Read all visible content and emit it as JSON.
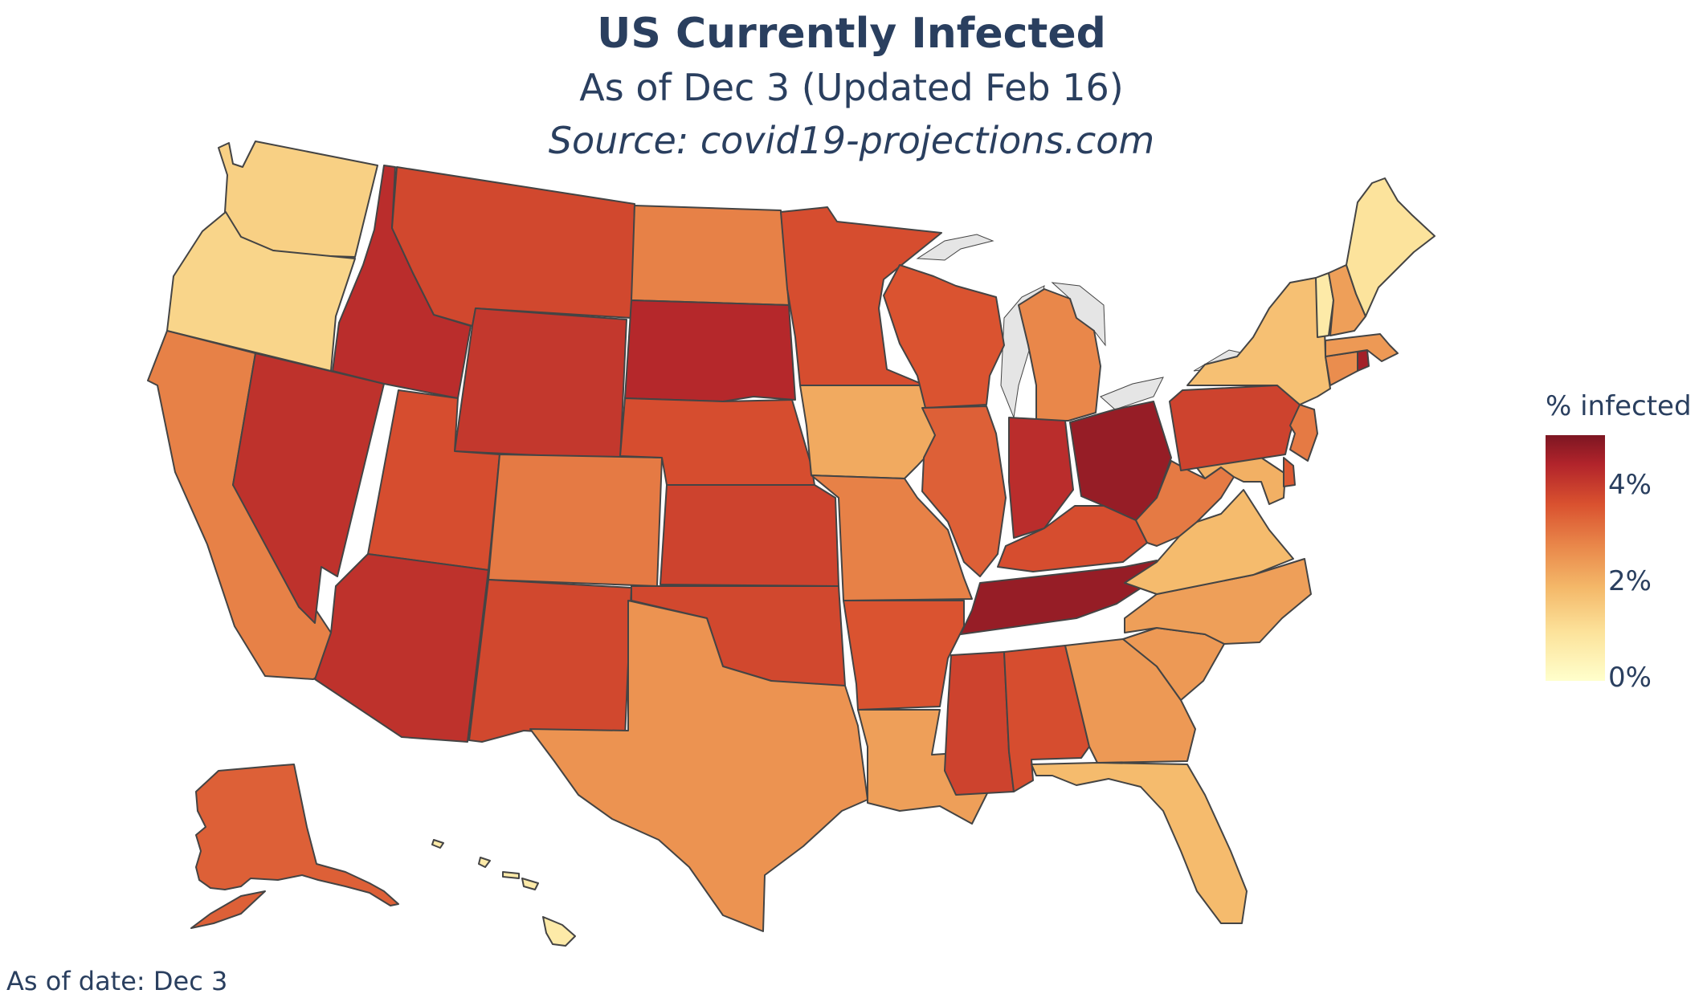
{
  "title": "US Currently Infected",
  "subtitle": "As of Dec 3 (Updated Feb 16)",
  "source": "Source: covid19-projections.com",
  "footer": "As of date: Dec 3",
  "colorbar": {
    "title": "% infected",
    "ticks": [
      "4%",
      "2%",
      "0%"
    ],
    "range": [
      0,
      5
    ]
  },
  "map_style": {
    "lakes_color": "#e5e5e5",
    "border_color": "#444444",
    "scale": [
      "#ffffcc",
      "#fce29a",
      "#f4b869",
      "#e9874a",
      "#d9512f",
      "#b2242b",
      "#7d1622"
    ]
  },
  "states": [
    {
      "name": "Washington",
      "value": 1.2
    },
    {
      "name": "Oregon",
      "value": 1.1
    },
    {
      "name": "California",
      "value": 2.6
    },
    {
      "name": "Nevada",
      "value": 3.9
    },
    {
      "name": "Idaho",
      "value": 4.0
    },
    {
      "name": "Montana",
      "value": 3.5
    },
    {
      "name": "Wyoming",
      "value": 3.8
    },
    {
      "name": "Utah",
      "value": 3.4
    },
    {
      "name": "Arizona",
      "value": 3.9
    },
    {
      "name": "Colorado",
      "value": 2.7
    },
    {
      "name": "New Mexico",
      "value": 3.5
    },
    {
      "name": "North Dakota",
      "value": 2.6
    },
    {
      "name": "South Dakota",
      "value": 4.1
    },
    {
      "name": "Nebraska",
      "value": 3.4
    },
    {
      "name": "Kansas",
      "value": 3.6
    },
    {
      "name": "Oklahoma",
      "value": 3.5
    },
    {
      "name": "Texas",
      "value": 2.3
    },
    {
      "name": "Minnesota",
      "value": 3.4
    },
    {
      "name": "Iowa",
      "value": 1.9
    },
    {
      "name": "Missouri",
      "value": 2.6
    },
    {
      "name": "Arkansas",
      "value": 3.3
    },
    {
      "name": "Louisiana",
      "value": 2.1
    },
    {
      "name": "Wisconsin",
      "value": 3.3
    },
    {
      "name": "Illinois",
      "value": 3.1
    },
    {
      "name": "Michigan",
      "value": 2.5
    },
    {
      "name": "Indiana",
      "value": 4.0
    },
    {
      "name": "Ohio",
      "value": 4.6
    },
    {
      "name": "Kentucky",
      "value": 3.4
    },
    {
      "name": "Tennessee",
      "value": 4.6
    },
    {
      "name": "Mississippi",
      "value": 3.6
    },
    {
      "name": "Alabama",
      "value": 3.4
    },
    {
      "name": "Georgia",
      "value": 2.2
    },
    {
      "name": "Florida",
      "value": 1.6
    },
    {
      "name": "South Carolina",
      "value": 2.2
    },
    {
      "name": "North Carolina",
      "value": 2.1
    },
    {
      "name": "Virginia",
      "value": 1.6
    },
    {
      "name": "West Virginia",
      "value": 2.7
    },
    {
      "name": "Maryland",
      "value": 1.8
    },
    {
      "name": "Delaware",
      "value": 3.2
    },
    {
      "name": "Pennsylvania",
      "value": 3.6
    },
    {
      "name": "New Jersey",
      "value": 2.7
    },
    {
      "name": "New York",
      "value": 1.5
    },
    {
      "name": "Connecticut",
      "value": 2.4
    },
    {
      "name": "Rhode Island",
      "value": 4.4
    },
    {
      "name": "Massachusetts",
      "value": 2.2
    },
    {
      "name": "Vermont",
      "value": 0.6
    },
    {
      "name": "New Hampshire",
      "value": 2.1
    },
    {
      "name": "Maine",
      "value": 0.8
    },
    {
      "name": "Alaska",
      "value": 3.1
    },
    {
      "name": "Hawaii",
      "value": 0.6
    }
  ]
}
